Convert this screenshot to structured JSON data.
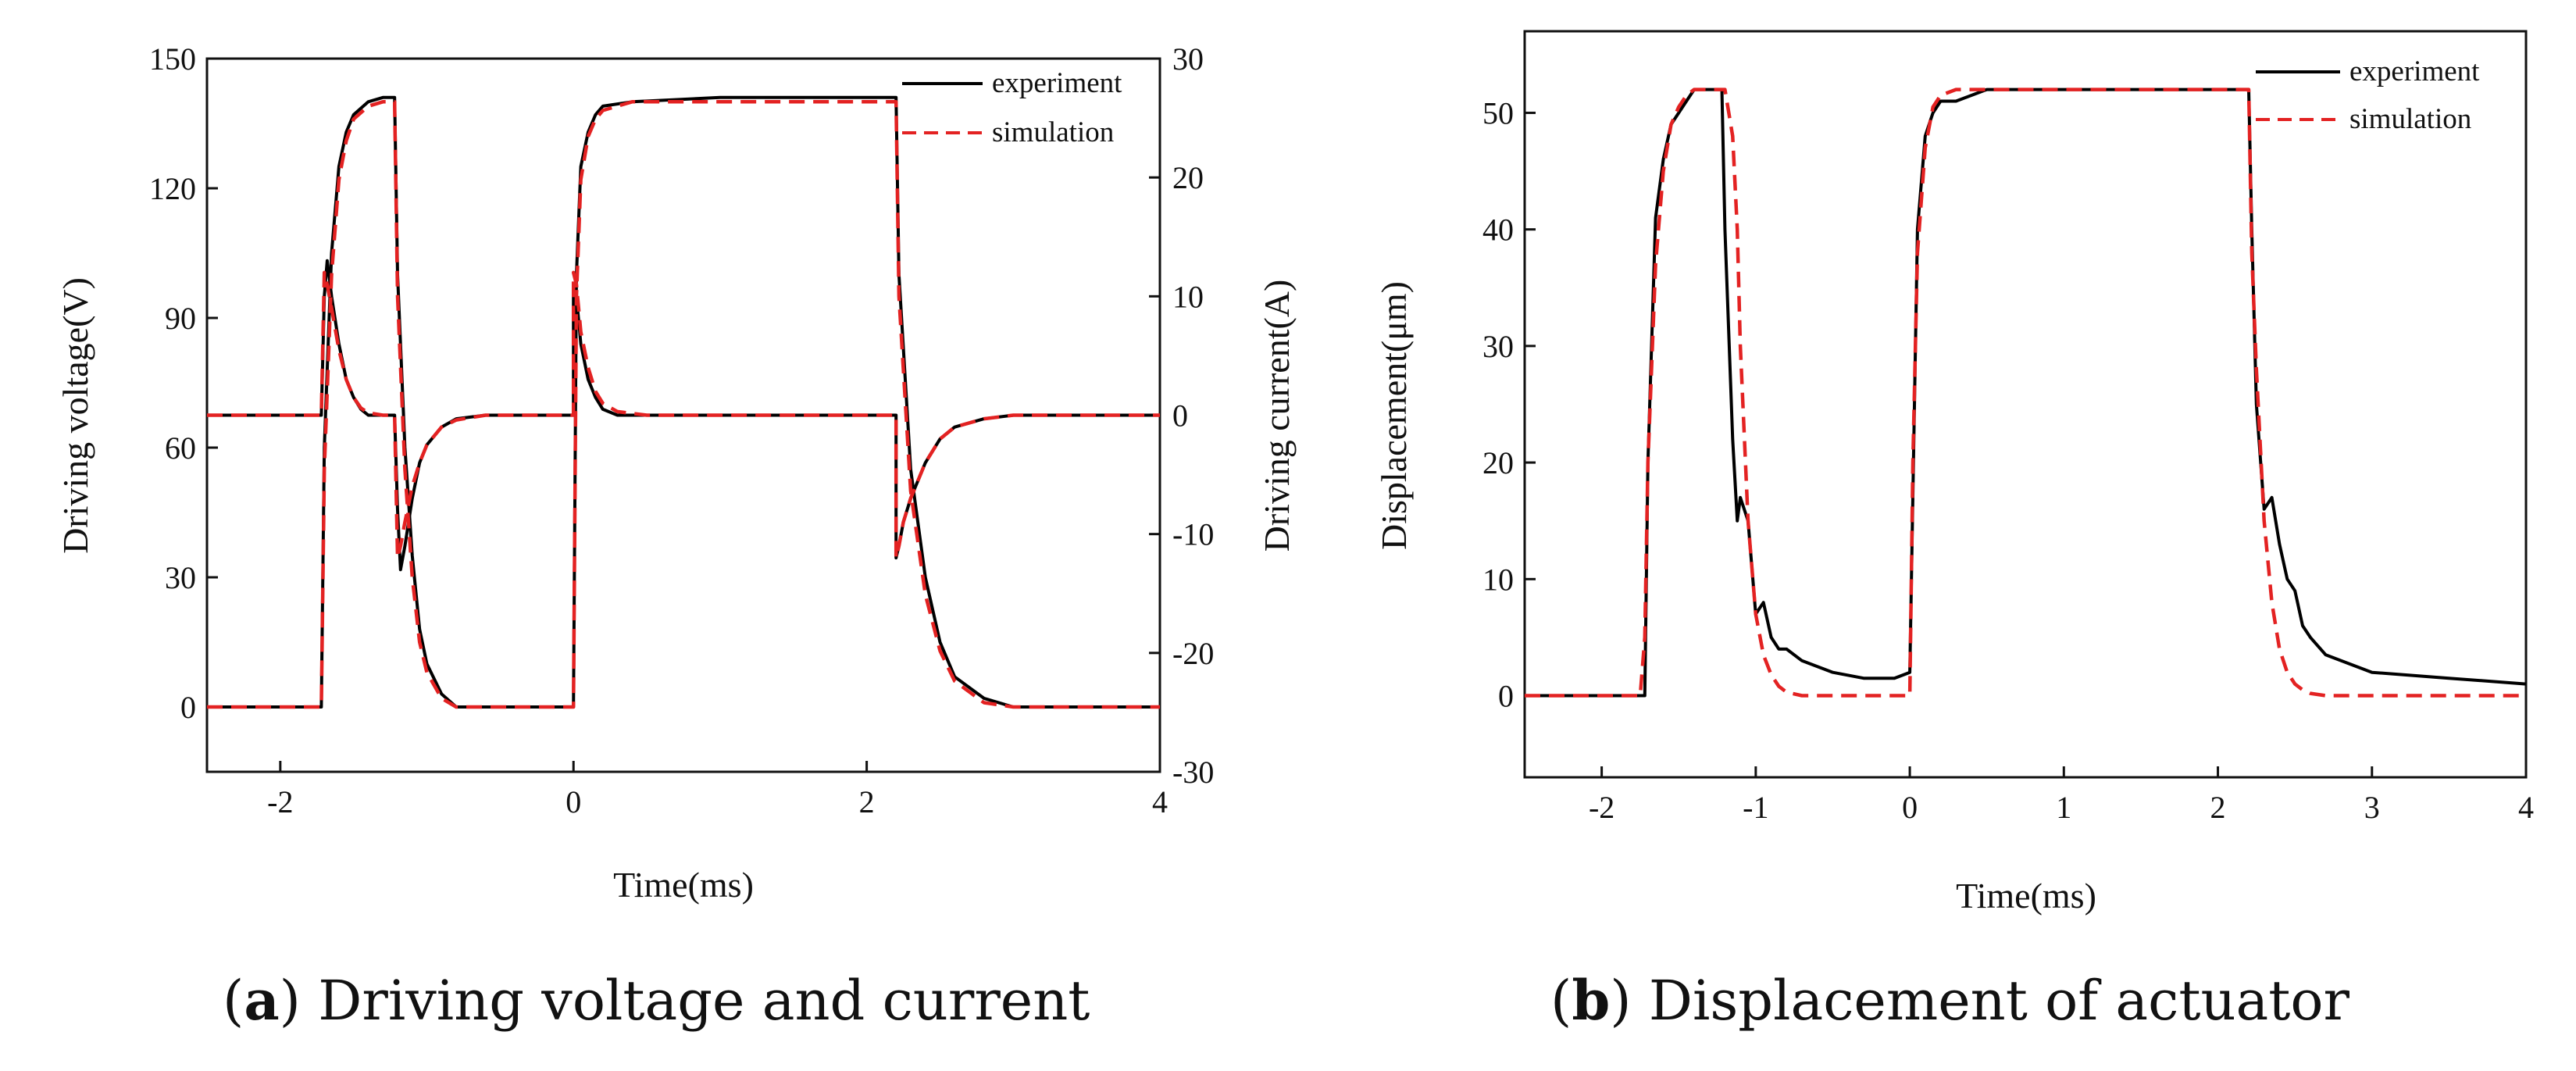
{
  "chart_data": [
    {
      "id": "a",
      "type": "line",
      "caption_letter": "a",
      "caption_text": " Driving voltage and current",
      "caption_open": "(",
      "caption_close": ")",
      "xlabel": "Time(ms)",
      "ylabel": "Driving voltage(V)",
      "y2label": "Driving current(A)",
      "xlim": [
        -2.5,
        4
      ],
      "ylim": [
        -15,
        150
      ],
      "y2lim": [
        -30,
        30
      ],
      "xticks": [
        -2,
        0,
        2,
        4
      ],
      "yticks": [
        0,
        30,
        60,
        90,
        120,
        150
      ],
      "y2ticks": [
        -30,
        -20,
        -10,
        0,
        10,
        20,
        30
      ],
      "grid": false,
      "legend": {
        "position": "top-right",
        "entries": [
          "experiment",
          "simulation"
        ]
      },
      "series": [
        {
          "name": "experiment",
          "quantity": "voltage",
          "color": "#000000",
          "dash": "solid",
          "x": [
            -2.5,
            -1.72,
            -1.7,
            -1.65,
            -1.6,
            -1.55,
            -1.5,
            -1.4,
            -1.3,
            -1.22,
            -1.2,
            -1.15,
            -1.1,
            -1.05,
            -1.0,
            -0.9,
            -0.8,
            -0.6,
            0.0,
            0.02,
            0.05,
            0.1,
            0.15,
            0.2,
            0.4,
            1.0,
            2.2,
            2.22,
            2.3,
            2.4,
            2.5,
            2.6,
            2.8,
            3.0,
            4.0
          ],
          "y": [
            0,
            0,
            60,
            105,
            125,
            133,
            137,
            140,
            141,
            141,
            100,
            60,
            35,
            18,
            10,
            3,
            0,
            0,
            0,
            100,
            125,
            133,
            137,
            139,
            140,
            141,
            141,
            100,
            55,
            30,
            15,
            7,
            2,
            0,
            0
          ]
        },
        {
          "name": "simulation",
          "quantity": "voltage",
          "color": "#e32222",
          "dash": "dashed",
          "x": [
            -2.5,
            -1.72,
            -1.7,
            -1.65,
            -1.6,
            -1.55,
            -1.5,
            -1.4,
            -1.3,
            -1.22,
            -1.2,
            -1.15,
            -1.1,
            -1.05,
            -1.0,
            -0.9,
            -0.8,
            -0.6,
            0.0,
            0.02,
            0.05,
            0.1,
            0.15,
            0.2,
            0.4,
            1.0,
            2.2,
            2.22,
            2.3,
            2.4,
            2.5,
            2.6,
            2.8,
            3.0,
            4.0
          ],
          "y": [
            0,
            0,
            55,
            100,
            122,
            131,
            136,
            139,
            140,
            140,
            95,
            55,
            30,
            15,
            8,
            2,
            0,
            0,
            0,
            95,
            122,
            132,
            136,
            138,
            140,
            140,
            140,
            95,
            50,
            26,
            13,
            6,
            1,
            0,
            0
          ]
        },
        {
          "name": "experiment",
          "quantity": "current",
          "color": "#000000",
          "dash": "solid",
          "axis": "right",
          "x": [
            -2.5,
            -1.72,
            -1.7,
            -1.68,
            -1.65,
            -1.6,
            -1.55,
            -1.5,
            -1.45,
            -1.4,
            -1.3,
            -1.22,
            -1.2,
            -1.18,
            -1.15,
            -1.1,
            -1.05,
            -1.0,
            -0.9,
            -0.8,
            -0.6,
            0.0,
            0.0,
            0.02,
            0.05,
            0.1,
            0.15,
            0.2,
            0.3,
            0.5,
            2.2,
            2.2,
            2.22,
            2.25,
            2.3,
            2.4,
            2.5,
            2.6,
            2.8,
            3.0,
            4.0
          ],
          "y": [
            0,
            0,
            10,
            13,
            10,
            6,
            3,
            1.5,
            0.5,
            0,
            0,
            0,
            -8,
            -13,
            -11,
            -7,
            -4,
            -2.5,
            -1,
            -0.3,
            0,
            0,
            11,
            10,
            6,
            3,
            1.5,
            0.5,
            0,
            0,
            0,
            -12,
            -11,
            -9,
            -7,
            -4,
            -2,
            -1,
            -0.3,
            0,
            0
          ]
        },
        {
          "name": "simulation",
          "quantity": "current",
          "color": "#e32222",
          "dash": "dashed",
          "axis": "right",
          "x": [
            -2.5,
            -1.72,
            -1.7,
            -1.68,
            -1.65,
            -1.6,
            -1.55,
            -1.5,
            -1.45,
            -1.4,
            -1.3,
            -1.22,
            -1.2,
            -1.18,
            -1.15,
            -1.1,
            -1.05,
            -1.0,
            -0.9,
            -0.8,
            -0.6,
            0.0,
            0.0,
            0.02,
            0.05,
            0.1,
            0.15,
            0.2,
            0.3,
            0.5,
            2.2,
            2.2,
            2.22,
            2.25,
            2.3,
            2.4,
            2.5,
            2.6,
            2.8,
            3.0,
            4.0
          ],
          "y": [
            0,
            0,
            12,
            11,
            9,
            5.5,
            3,
            1.5,
            0.6,
            0.2,
            0,
            0,
            -12,
            -11,
            -9,
            -6,
            -4,
            -2.5,
            -1,
            -0.4,
            0,
            0,
            12,
            11,
            7,
            4,
            2,
            1,
            0.3,
            0,
            0,
            -12,
            -11,
            -9,
            -7,
            -4,
            -2,
            -1,
            -0.3,
            0,
            0
          ]
        }
      ]
    },
    {
      "id": "b",
      "type": "line",
      "caption_letter": "b",
      "caption_text": " Displacement of actuator",
      "caption_open": "(",
      "caption_close": ")",
      "xlabel": "Time(ms)",
      "ylabel": "Displacement(μm)",
      "xlim": [
        -2.5,
        4
      ],
      "ylim": [
        -7,
        57
      ],
      "xticks": [
        -2,
        -1,
        0,
        1,
        2,
        3,
        4
      ],
      "yticks": [
        0,
        10,
        20,
        30,
        40,
        50
      ],
      "grid": false,
      "legend": {
        "position": "top-right",
        "entries": [
          "experiment",
          "simulation"
        ]
      },
      "series": [
        {
          "name": "experiment",
          "color": "#000000",
          "dash": "solid",
          "x": [
            -2.5,
            -1.72,
            -1.7,
            -1.65,
            -1.6,
            -1.55,
            -1.5,
            -1.45,
            -1.4,
            -1.3,
            -1.22,
            -1.2,
            -1.15,
            -1.12,
            -1.1,
            -1.05,
            -1.0,
            -0.95,
            -0.9,
            -0.85,
            -0.8,
            -0.7,
            -0.5,
            -0.3,
            -0.1,
            0.0,
            0.05,
            0.1,
            0.15,
            0.2,
            0.3,
            0.5,
            1.0,
            2.2,
            2.22,
            2.25,
            2.3,
            2.35,
            2.4,
            2.45,
            2.5,
            2.55,
            2.6,
            2.7,
            2.8,
            3.0,
            3.5,
            4.0
          ],
          "y": [
            0,
            0,
            20,
            41,
            46,
            49,
            50,
            51,
            52,
            52,
            52,
            40,
            22,
            15,
            17,
            15,
            7,
            8,
            5,
            4,
            4,
            3,
            2,
            1.5,
            1.5,
            2,
            40,
            48,
            50,
            51,
            51,
            52,
            52,
            52,
            40,
            25,
            16,
            17,
            13,
            10,
            9,
            6,
            5,
            3.5,
            3,
            2,
            1.5,
            1
          ]
        },
        {
          "name": "simulation",
          "color": "#e32222",
          "dash": "dashed",
          "x": [
            -2.5,
            -1.75,
            -1.72,
            -1.7,
            -1.65,
            -1.6,
            -1.55,
            -1.5,
            -1.45,
            -1.4,
            -1.3,
            -1.2,
            -1.15,
            -1.12,
            -1.1,
            -1.05,
            -1.0,
            -0.95,
            -0.9,
            -0.85,
            -0.8,
            -0.7,
            -0.5,
            0.0,
            0.02,
            0.05,
            0.1,
            0.15,
            0.2,
            0.3,
            0.5,
            1.0,
            2.2,
            2.22,
            2.25,
            2.3,
            2.35,
            2.4,
            2.45,
            2.5,
            2.55,
            2.6,
            2.7,
            2.8,
            3.0,
            3.5,
            4.0
          ],
          "y": [
            0,
            0,
            5,
            20,
            37,
            45,
            49,
            50.5,
            51.5,
            52,
            52,
            52,
            48,
            40,
            30,
            15,
            7,
            3.5,
            1.8,
            0.8,
            0.3,
            0,
            0,
            0,
            20,
            38,
            47,
            50.5,
            51.5,
            52,
            52,
            52,
            52,
            38,
            28,
            15,
            8,
            4,
            2,
            1,
            0.5,
            0.2,
            0,
            0,
            0,
            0,
            0
          ]
        }
      ]
    }
  ]
}
